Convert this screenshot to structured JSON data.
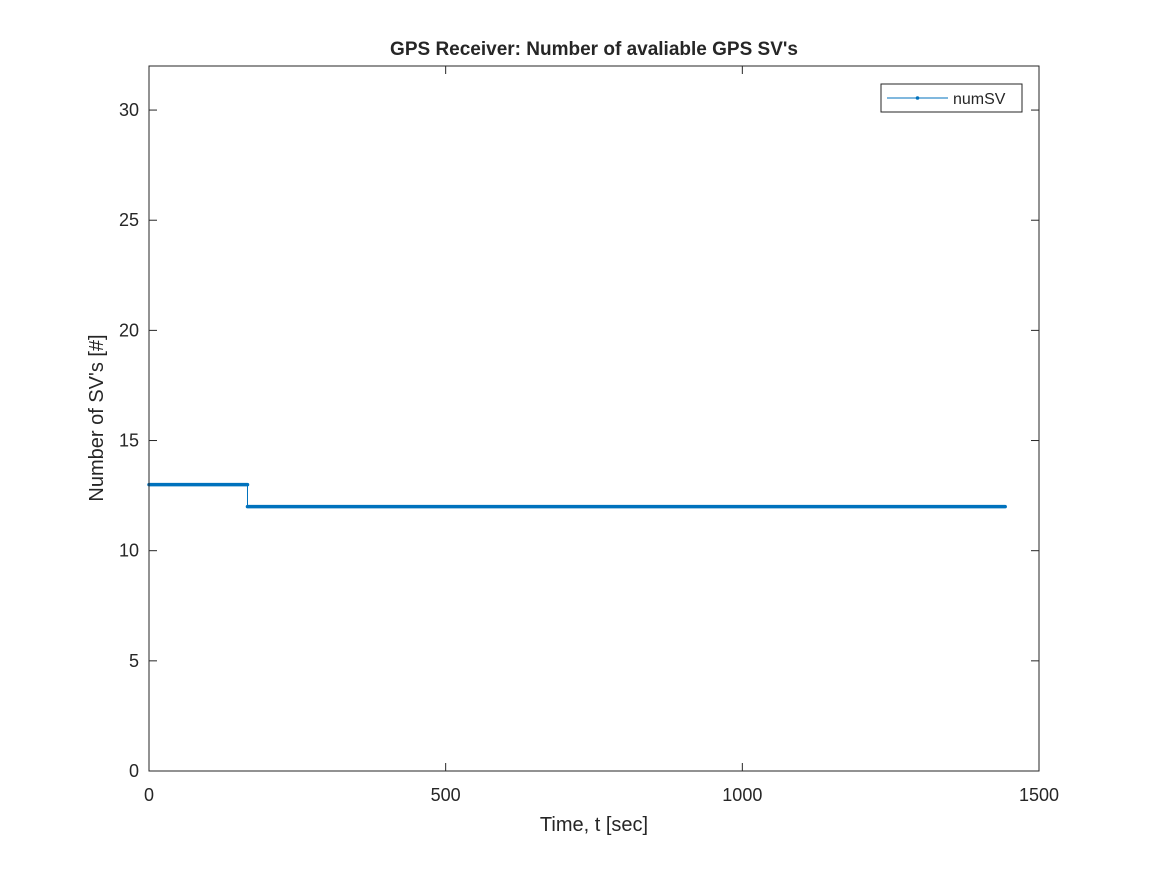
{
  "chart_data": {
    "type": "line",
    "title": "GPS Receiver: Number of avaliable GPS SV's",
    "xlabel": "Time, t [sec]",
    "ylabel": "Number of SV's [#]",
    "xlim": [
      0,
      1500
    ],
    "ylim": [
      0,
      32
    ],
    "xticks": [
      0,
      500,
      1000,
      1500
    ],
    "yticks": [
      0,
      5,
      10,
      15,
      20,
      25,
      30
    ],
    "grid": false,
    "legend_position": "top-right",
    "series": [
      {
        "name": "numSV",
        "color": "#0072BD",
        "marker": "dot",
        "x": [
          0,
          166,
          166,
          1443
        ],
        "y": [
          13,
          13,
          12,
          12
        ]
      }
    ]
  }
}
